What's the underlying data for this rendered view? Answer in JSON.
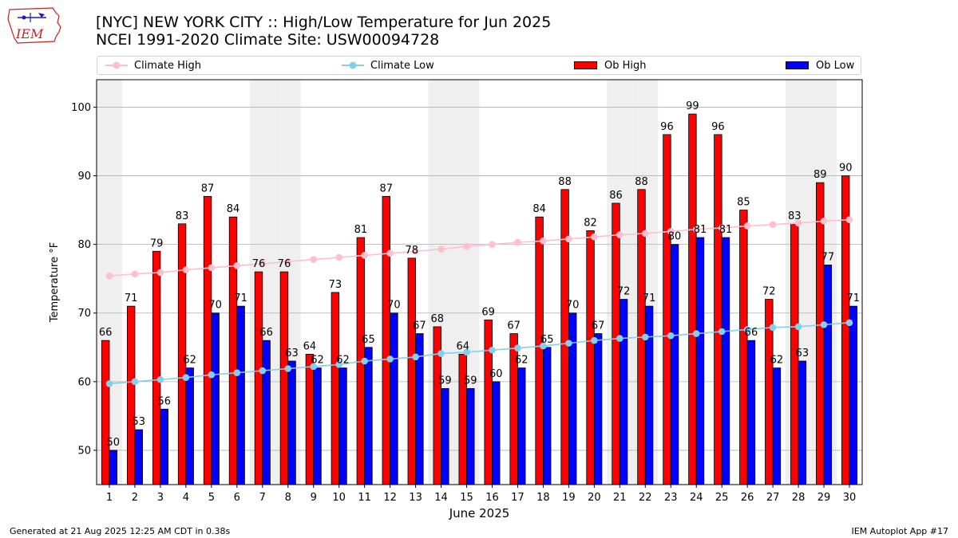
{
  "logo": {
    "text": "IEM",
    "icon": "iowa-weather-station-logo",
    "color": "#cc2222"
  },
  "header": {
    "title_line1": "[NYC] NEW YORK CITY :: High/Low Temperature for Jun 2025",
    "title_line2": "NCEI 1991-2020 Climate Site: USW00094728"
  },
  "footer": {
    "left": "Generated at 21 Aug 2025 12:25 AM CDT in 0.38s",
    "right": "IEM Autoplot App #17"
  },
  "colors": {
    "ob_high": "#ff0000",
    "ob_low": "#0000ff",
    "climate_high": "#ffc0cb",
    "climate_low": "#87ceeb",
    "weekend_band": "#efefef",
    "grid": "#b0b0b0"
  },
  "chart_data": {
    "type": "bar",
    "xlabel": "June 2025",
    "ylabel": "Temperature °F",
    "ylim": [
      45,
      104
    ],
    "yticks": [
      50,
      60,
      70,
      80,
      90,
      100
    ],
    "grid": "horizontal",
    "legend_placement": "top",
    "categories": [
      1,
      2,
      3,
      4,
      5,
      6,
      7,
      8,
      9,
      10,
      11,
      12,
      13,
      14,
      15,
      16,
      17,
      18,
      19,
      20,
      21,
      22,
      23,
      24,
      25,
      26,
      27,
      28,
      29,
      30
    ],
    "weekend_days": [
      1,
      7,
      8,
      14,
      15,
      21,
      22,
      28,
      29
    ],
    "series": [
      {
        "name": "Ob High",
        "kind": "bar",
        "values": [
          66,
          71,
          79,
          83,
          87,
          84,
          76,
          76,
          64,
          73,
          81,
          87,
          78,
          68,
          64,
          69,
          67,
          84,
          88,
          82,
          86,
          88,
          96,
          99,
          96,
          85,
          72,
          83,
          89,
          90
        ]
      },
      {
        "name": "Ob Low",
        "kind": "bar",
        "values": [
          50,
          53,
          56,
          62,
          70,
          71,
          66,
          63,
          62,
          62,
          65,
          70,
          67,
          59,
          59,
          60,
          62,
          65,
          70,
          67,
          72,
          71,
          80,
          81,
          81,
          66,
          62,
          63,
          77,
          71
        ]
      },
      {
        "name": "Climate High",
        "kind": "line",
        "values": [
          75.4,
          75.7,
          75.9,
          76.3,
          76.6,
          76.9,
          77.2,
          77.5,
          77.8,
          78.1,
          78.4,
          78.7,
          79.0,
          79.3,
          79.7,
          80.0,
          80.3,
          80.5,
          80.8,
          81.1,
          81.4,
          81.6,
          81.9,
          82.2,
          82.4,
          82.7,
          82.9,
          83.1,
          83.4,
          83.6
        ]
      },
      {
        "name": "Climate Low",
        "kind": "line",
        "values": [
          59.7,
          60.0,
          60.3,
          60.6,
          61.0,
          61.3,
          61.6,
          61.9,
          62.2,
          62.5,
          63.0,
          63.3,
          63.6,
          64.1,
          64.3,
          64.6,
          64.9,
          65.2,
          65.6,
          66.0,
          66.3,
          66.5,
          66.7,
          67.0,
          67.3,
          67.6,
          67.9,
          68.0,
          68.3,
          68.6
        ]
      }
    ]
  }
}
